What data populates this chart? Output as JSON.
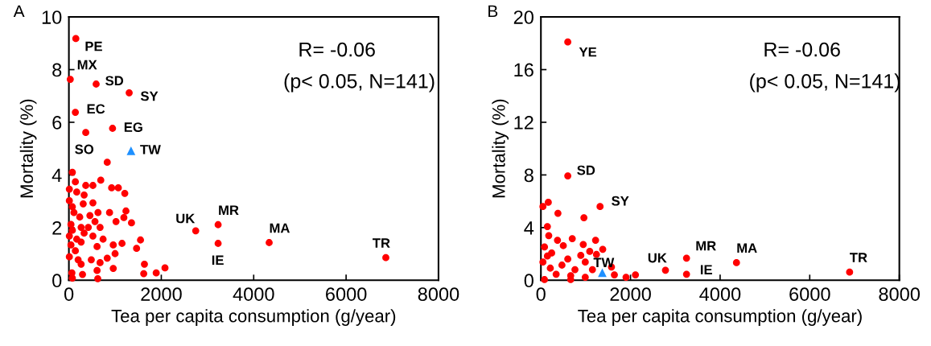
{
  "chart_data": [
    {
      "type": "scatter",
      "xlabel": "Tea per capita consumption (g/year)",
      "ylabel": "Mortality (%)",
      "xlim": [
        0,
        8000
      ],
      "xticks": [
        0,
        2000,
        4000,
        6000,
        8000
      ],
      "ylim": [
        0,
        10
      ],
      "yticks": [
        0,
        2,
        4,
        6,
        8,
        10
      ],
      "grid": false,
      "legend": false,
      "series": [
        {
          "color": "#ff0000",
          "marker": "circle",
          "x": [
            150,
            30,
            590,
            1305,
            140,
            945,
            365,
            2745,
            3230,
            3230,
            4335,
            6860,
            830,
            75,
            690,
            140,
            365,
            520,
            925,
            1070,
            1210,
            10,
            170,
            330,
            520,
            310,
            630,
            880,
            1235,
            1020,
            1190,
            1355,
            455,
            75,
            235,
            45,
            75,
            330,
            520,
            740,
            610,
            960,
            1150,
            1550,
            1465,
            45,
            140,
            485,
            1000,
            830,
            960,
            675,
            1635,
            1620,
            1890,
            2080,
            610,
            625,
            65,
            75,
            295,
            265,
            10,
            200,
            10,
            110,
            265,
            170,
            420,
            675,
            565,
            10,
            265
          ],
          "values": [
            9.18,
            7.63,
            7.45,
            7.12,
            6.38,
            5.77,
            5.61,
            1.88,
            2.11,
            1.4,
            1.43,
            0.86,
            4.48,
            4.1,
            3.8,
            3.74,
            3.6,
            3.6,
            3.51,
            3.51,
            3.3,
            3.46,
            3.35,
            3.24,
            2.94,
            2.9,
            2.57,
            2.57,
            2.63,
            2.23,
            2.38,
            2.18,
            2.46,
            2.79,
            2.4,
            2.12,
            1.9,
            1.79,
            1.68,
            1.56,
            1.28,
            1.34,
            1.4,
            1.53,
            1.21,
            1.34,
            1.12,
            0.78,
            1.01,
            0.84,
            0.45,
            0.67,
            0.61,
            0.25,
            0.28,
            0.47,
            0.37,
            0.06,
            0.28,
            0.08,
            0.22,
            0.61,
            0.89,
            0.78,
            1.68,
            2.57,
            1.45,
            1.56,
            2.01,
            2.01,
            2.23,
            3.02,
            2.01
          ]
        },
        {
          "color": "#1e90ff",
          "marker": "triangle",
          "x": [
            1345
          ],
          "values": [
            4.92
          ]
        }
      ],
      "annotations": [
        "A",
        "R= -0.06",
        "(p< 0.05, N=141)",
        {
          "text": "PE",
          "x": 150,
          "y": 9.18
        },
        {
          "text": "MX",
          "x": 30,
          "y": 7.63
        },
        {
          "text": "SD",
          "x": 590,
          "y": 7.45
        },
        {
          "text": "SY",
          "x": 1305,
          "y": 7.12
        },
        {
          "text": "EC",
          "x": 140,
          "y": 6.38
        },
        {
          "text": "EG",
          "x": 945,
          "y": 5.77
        },
        {
          "text": "SO",
          "x": 365,
          "y": 5.61
        },
        {
          "text": "TW",
          "x": 1345,
          "y": 4.92
        },
        {
          "text": "UK",
          "x": 2745,
          "y": 1.88
        },
        {
          "text": "MR",
          "x": 3230,
          "y": 2.11
        },
        {
          "text": "IE",
          "x": 3230,
          "y": 1.4
        },
        {
          "text": "MA",
          "x": 4335,
          "y": 1.43
        },
        {
          "text": "TR",
          "x": 6860,
          "y": 0.86
        }
      ]
    },
    {
      "type": "scatter",
      "xlabel": "Tea per capita consumption (g/year)",
      "ylabel": "Mortality (%)",
      "xlim": [
        0,
        8000
      ],
      "xticks": [
        0,
        2000,
        4000,
        6000,
        8000
      ],
      "ylim": [
        0,
        20
      ],
      "yticks": [
        0,
        4,
        8,
        12,
        16,
        20
      ],
      "grid": false,
      "legend": false,
      "series": [
        {
          "color": "#ff0000",
          "marker": "circle",
          "x": [
            600,
            600,
            1320,
            2780,
            3250,
            3250,
            4365,
            6890,
            45,
            165,
            380,
            960,
            145,
            175,
            700,
            370,
            1220,
            945,
            1380,
            1090,
            1240,
            890,
            500,
            80,
            240,
            600,
            1575,
            1640,
            1900,
            2110,
            1150,
            990,
            665,
            80,
            340,
            760,
            45,
            210,
            470,
            990,
            145,
            665
          ],
          "values": [
            18.1,
            7.93,
            5.6,
            0.76,
            1.68,
            0.46,
            1.34,
            0.62,
            5.6,
            5.92,
            5.09,
            4.75,
            4.08,
            3.39,
            3.16,
            3.04,
            3.04,
            2.72,
            2.35,
            2.19,
            1.96,
            1.89,
            2.63,
            2.53,
            2.07,
            1.61,
            1.01,
            0.41,
            0.23,
            0.41,
            0.81,
            0.23,
            0.05,
            0.05,
            0.46,
            0.81,
            1.38,
            0.92,
            1.15,
            1.38,
            1.84,
            0.35
          ]
        },
        {
          "color": "#1e90ff",
          "marker": "triangle",
          "x": [
            1370
          ],
          "values": [
            0.58
          ]
        }
      ],
      "annotations": [
        "B",
        "R= -0.06",
        "(p< 0.05, N=141)",
        {
          "text": "YE",
          "x": 600,
          "y": 18.1
        },
        {
          "text": "SD",
          "x": 600,
          "y": 7.93
        },
        {
          "text": "SY",
          "x": 1320,
          "y": 5.6
        },
        {
          "text": "TW",
          "x": 1370,
          "y": 0.58
        },
        {
          "text": "UK",
          "x": 2780,
          "y": 0.76
        },
        {
          "text": "MR",
          "x": 3250,
          "y": 1.68
        },
        {
          "text": "IE",
          "x": 3250,
          "y": 0.46
        },
        {
          "text": "MA",
          "x": 4365,
          "y": 1.34
        },
        {
          "text": "TR",
          "x": 6890,
          "y": 0.62
        }
      ]
    }
  ]
}
